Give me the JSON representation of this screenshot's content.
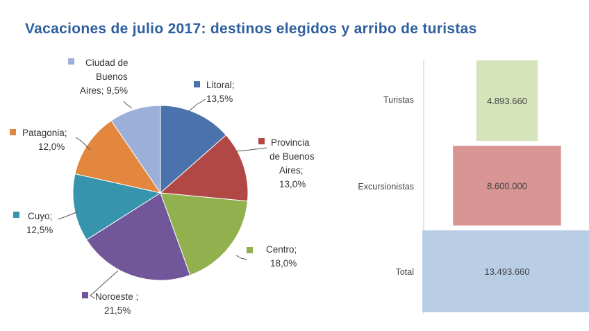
{
  "title": "Vacaciones  de julio 2017: destinos elegidos y arribo de turistas",
  "chart_data": [
    {
      "type": "pie",
      "slices": [
        {
          "name": "Litoral",
          "value": 13.5,
          "label_lines": [
            "Litoral;",
            "13,5%"
          ],
          "color": "#4a73ad"
        },
        {
          "name": "Provincia de Buenos Aires",
          "value": 13.0,
          "label_lines": [
            "Provincia",
            "de Buenos",
            "Aires;",
            "13,0%"
          ],
          "color": "#b24845"
        },
        {
          "name": "Centro",
          "value": 18.0,
          "label_lines": [
            "Centro;",
            "18,0%"
          ],
          "color": "#90b14e"
        },
        {
          "name": "Noroeste",
          "value": 21.5,
          "label_lines": [
            "Noroeste ;",
            "21,5%"
          ],
          "color": "#71569a"
        },
        {
          "name": "Cuyo",
          "value": 12.5,
          "label_lines": [
            "Cuyo;",
            "12,5%"
          ],
          "color": "#3794ad"
        },
        {
          "name": "Patagonia",
          "value": 12.0,
          "label_lines": [
            "Patagonia;",
            "12,0%"
          ],
          "color": "#e2873d"
        },
        {
          "name": "Ciudad de Buenos Aires",
          "value": 9.5,
          "label_lines": [
            "Ciudad de",
            "Buenos",
            "Aires; 9,5%"
          ],
          "color": "#9bafd9"
        }
      ]
    },
    {
      "type": "bar",
      "orientation": "horizontal",
      "categories": [
        "Turistas",
        "Excursionistas",
        "Total"
      ],
      "values": [
        4893660,
        8600000,
        13493660
      ],
      "value_labels": [
        "4.893.660",
        "8.600.000",
        "13.493.660"
      ],
      "colors": [
        "#d6e4bc",
        "#d99594",
        "#b9cde5"
      ]
    }
  ]
}
